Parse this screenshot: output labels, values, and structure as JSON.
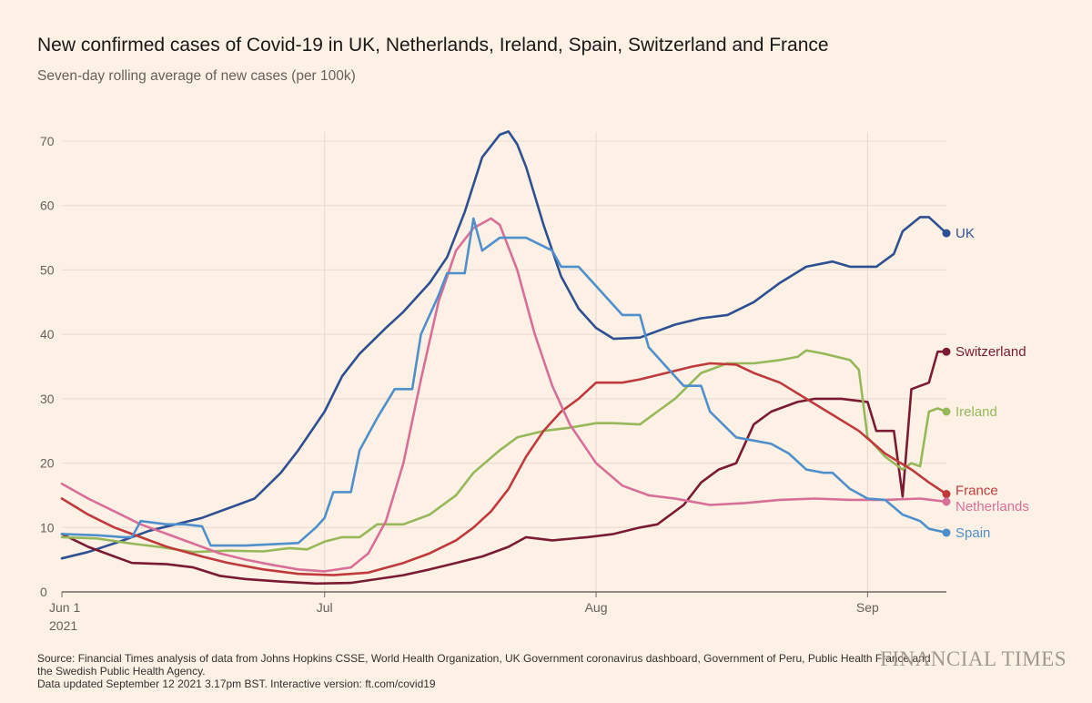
{
  "title": "New confirmed cases of Covid-19 in UK, Netherlands, Ireland, Spain, Switzerland and France",
  "subtitle": "Seven-day rolling average of new cases (per 100k)",
  "source_lines": [
    "Source: Financial Times analysis of data from Johns Hopkins CSSE, World Health Organization, UK Government coronavirus dashboard, Government of Peru, Public Health France and",
    "the Swedish Public Health Agency.",
    "Data updated September 12 2021 3.17pm BST. Interactive version: ft.com/covid19"
  ],
  "brand": "FINANCIAL TIMES",
  "chart_data": {
    "type": "line",
    "title": "New confirmed cases of Covid-19 in UK, Netherlands, Ireland, Spain, Switzerland and France",
    "subtitle": "Seven-day rolling average of new cases (per 100k)",
    "x_range": [
      "2021-06-01",
      "2021-09-10"
    ],
    "ylim": [
      0,
      70
    ],
    "yticks": [
      0,
      10,
      20,
      30,
      40,
      50,
      60,
      70
    ],
    "xticks": [
      {
        "date": "2021-06-01",
        "label": "Jun 1",
        "sublabel": "2021"
      },
      {
        "date": "2021-07-01",
        "label": "Jul"
      },
      {
        "date": "2021-08-01",
        "label": "Aug"
      },
      {
        "date": "2021-09-01",
        "label": "Sep"
      }
    ],
    "grid": true,
    "legend": "direct labels at line ends",
    "series": [
      {
        "name": "UK",
        "color": "#2e4f92",
        "points": [
          [
            "2021-06-01",
            5.2
          ],
          [
            "2021-06-04",
            6.2
          ],
          [
            "2021-06-08",
            8
          ],
          [
            "2021-06-11",
            9.5
          ],
          [
            "2021-06-14",
            10.5
          ],
          [
            "2021-06-17",
            11.5
          ],
          [
            "2021-06-20",
            13
          ],
          [
            "2021-06-23",
            14.5
          ],
          [
            "2021-06-26",
            18.5
          ],
          [
            "2021-06-28",
            22
          ],
          [
            "2021-07-01",
            28
          ],
          [
            "2021-07-03",
            33.5
          ],
          [
            "2021-07-05",
            37
          ],
          [
            "2021-07-08",
            41
          ],
          [
            "2021-07-10",
            43.5
          ],
          [
            "2021-07-13",
            48
          ],
          [
            "2021-07-15",
            52
          ],
          [
            "2021-07-17",
            59
          ],
          [
            "2021-07-19",
            67.5
          ],
          [
            "2021-07-21",
            71
          ],
          [
            "2021-07-22",
            71.5
          ],
          [
            "2021-07-23",
            69.5
          ],
          [
            "2021-07-24",
            66
          ],
          [
            "2021-07-26",
            57
          ],
          [
            "2021-07-28",
            49
          ],
          [
            "2021-07-30",
            44
          ],
          [
            "2021-08-01",
            41
          ],
          [
            "2021-08-03",
            39.3
          ],
          [
            "2021-08-06",
            39.5
          ],
          [
            "2021-08-10",
            41.5
          ],
          [
            "2021-08-13",
            42.5
          ],
          [
            "2021-08-16",
            43
          ],
          [
            "2021-08-19",
            45
          ],
          [
            "2021-08-22",
            48
          ],
          [
            "2021-08-25",
            50.5
          ],
          [
            "2021-08-28",
            51.3
          ],
          [
            "2021-08-30",
            50.5
          ],
          [
            "2021-09-02",
            50.5
          ],
          [
            "2021-09-04",
            52.5
          ],
          [
            "2021-09-05",
            56
          ],
          [
            "2021-09-07",
            58.2
          ],
          [
            "2021-09-08",
            58.2
          ],
          [
            "2021-09-10",
            55.7
          ]
        ]
      },
      {
        "name": "Switzerland",
        "color": "#7a1b33",
        "points": [
          [
            "2021-06-01",
            9
          ],
          [
            "2021-06-04",
            7
          ],
          [
            "2021-06-07",
            5.5
          ],
          [
            "2021-06-09",
            4.5
          ],
          [
            "2021-06-13",
            4.3
          ],
          [
            "2021-06-16",
            3.8
          ],
          [
            "2021-06-19",
            2.5
          ],
          [
            "2021-06-22",
            2
          ],
          [
            "2021-06-26",
            1.6
          ],
          [
            "2021-06-30",
            1.3
          ],
          [
            "2021-07-04",
            1.4
          ],
          [
            "2021-07-07",
            2
          ],
          [
            "2021-07-10",
            2.6
          ],
          [
            "2021-07-13",
            3.5
          ],
          [
            "2021-07-16",
            4.5
          ],
          [
            "2021-07-19",
            5.5
          ],
          [
            "2021-07-22",
            7
          ],
          [
            "2021-07-24",
            8.5
          ],
          [
            "2021-07-27",
            8
          ],
          [
            "2021-07-31",
            8.5
          ],
          [
            "2021-08-03",
            9
          ],
          [
            "2021-08-06",
            10
          ],
          [
            "2021-08-08",
            10.5
          ],
          [
            "2021-08-11",
            13.5
          ],
          [
            "2021-08-13",
            17
          ],
          [
            "2021-08-15",
            19
          ],
          [
            "2021-08-17",
            20
          ],
          [
            "2021-08-19",
            26
          ],
          [
            "2021-08-21",
            28
          ],
          [
            "2021-08-24",
            29.5
          ],
          [
            "2021-08-26",
            30
          ],
          [
            "2021-08-29",
            30
          ],
          [
            "2021-09-01",
            29.5
          ],
          [
            "2021-09-02",
            25
          ],
          [
            "2021-09-04",
            25
          ],
          [
            "2021-09-05",
            14.8
          ],
          [
            "2021-09-06",
            31.5
          ],
          [
            "2021-09-08",
            32.5
          ],
          [
            "2021-09-09",
            37.3
          ],
          [
            "2021-09-10",
            37.3
          ]
        ]
      },
      {
        "name": "Ireland",
        "color": "#96b85a",
        "points": [
          [
            "2021-06-01",
            8.5
          ],
          [
            "2021-06-05",
            8.3
          ],
          [
            "2021-06-09",
            7.5
          ],
          [
            "2021-06-12",
            7
          ],
          [
            "2021-06-16",
            6.2
          ],
          [
            "2021-06-20",
            6.4
          ],
          [
            "2021-06-24",
            6.3
          ],
          [
            "2021-06-27",
            6.8
          ],
          [
            "2021-06-29",
            6.6
          ],
          [
            "2021-07-01",
            7.8
          ],
          [
            "2021-07-03",
            8.5
          ],
          [
            "2021-07-05",
            8.5
          ],
          [
            "2021-07-07",
            10.5
          ],
          [
            "2021-07-10",
            10.5
          ],
          [
            "2021-07-13",
            12
          ],
          [
            "2021-07-16",
            15
          ],
          [
            "2021-07-18",
            18.5
          ],
          [
            "2021-07-21",
            22
          ],
          [
            "2021-07-23",
            24
          ],
          [
            "2021-07-26",
            25
          ],
          [
            "2021-07-29",
            25.5
          ],
          [
            "2021-08-01",
            26.2
          ],
          [
            "2021-08-03",
            26.2
          ],
          [
            "2021-08-06",
            26
          ],
          [
            "2021-08-08",
            28
          ],
          [
            "2021-08-10",
            30
          ],
          [
            "2021-08-13",
            34
          ],
          [
            "2021-08-16",
            35.5
          ],
          [
            "2021-08-19",
            35.5
          ],
          [
            "2021-08-22",
            36
          ],
          [
            "2021-08-24",
            36.5
          ],
          [
            "2021-08-25",
            37.5
          ],
          [
            "2021-08-27",
            37
          ],
          [
            "2021-08-30",
            36
          ],
          [
            "2021-08-31",
            34.5
          ],
          [
            "2021-09-01",
            24
          ],
          [
            "2021-09-03",
            21
          ],
          [
            "2021-09-05",
            19
          ],
          [
            "2021-09-06",
            20
          ],
          [
            "2021-09-07",
            19.5
          ],
          [
            "2021-09-08",
            28
          ],
          [
            "2021-09-09",
            28.5
          ],
          [
            "2021-09-10",
            28
          ]
        ]
      },
      {
        "name": "France",
        "color": "#c03a3c",
        "points": [
          [
            "2021-06-01",
            14.5
          ],
          [
            "2021-06-04",
            12
          ],
          [
            "2021-06-07",
            10
          ],
          [
            "2021-06-10",
            8.5
          ],
          [
            "2021-06-13",
            7
          ],
          [
            "2021-06-17",
            5.5
          ],
          [
            "2021-06-20",
            4.5
          ],
          [
            "2021-06-24",
            3.5
          ],
          [
            "2021-06-28",
            2.8
          ],
          [
            "2021-07-02",
            2.6
          ],
          [
            "2021-07-06",
            3
          ],
          [
            "2021-07-10",
            4.5
          ],
          [
            "2021-07-13",
            6
          ],
          [
            "2021-07-16",
            8
          ],
          [
            "2021-07-18",
            10
          ],
          [
            "2021-07-20",
            12.5
          ],
          [
            "2021-07-22",
            16
          ],
          [
            "2021-07-24",
            21
          ],
          [
            "2021-07-26",
            25
          ],
          [
            "2021-07-28",
            28
          ],
          [
            "2021-07-30",
            30
          ],
          [
            "2021-08-01",
            32.5
          ],
          [
            "2021-08-04",
            32.5
          ],
          [
            "2021-08-06",
            33
          ],
          [
            "2021-08-09",
            34
          ],
          [
            "2021-08-12",
            35
          ],
          [
            "2021-08-14",
            35.5
          ],
          [
            "2021-08-17",
            35.3
          ],
          [
            "2021-08-19",
            34
          ],
          [
            "2021-08-22",
            32.5
          ],
          [
            "2021-08-25",
            30
          ],
          [
            "2021-08-28",
            27.5
          ],
          [
            "2021-08-31",
            25
          ],
          [
            "2021-09-03",
            21.5
          ],
          [
            "2021-09-06",
            19
          ],
          [
            "2021-09-08",
            17
          ],
          [
            "2021-09-10",
            15.2
          ]
        ]
      },
      {
        "name": "Netherlands",
        "color": "#d86f99",
        "points": [
          [
            "2021-06-01",
            16.8
          ],
          [
            "2021-06-04",
            14.5
          ],
          [
            "2021-06-07",
            12.5
          ],
          [
            "2021-06-10",
            10.5
          ],
          [
            "2021-06-13",
            9
          ],
          [
            "2021-06-16",
            7.5
          ],
          [
            "2021-06-19",
            6
          ],
          [
            "2021-06-22",
            5
          ],
          [
            "2021-06-25",
            4.2
          ],
          [
            "2021-06-28",
            3.5
          ],
          [
            "2021-07-01",
            3.2
          ],
          [
            "2021-07-04",
            3.8
          ],
          [
            "2021-07-06",
            6
          ],
          [
            "2021-07-08",
            11
          ],
          [
            "2021-07-10",
            20
          ],
          [
            "2021-07-12",
            33
          ],
          [
            "2021-07-14",
            45
          ],
          [
            "2021-07-16",
            53
          ],
          [
            "2021-07-18",
            56.5
          ],
          [
            "2021-07-20",
            58
          ],
          [
            "2021-07-21",
            57
          ],
          [
            "2021-07-23",
            50
          ],
          [
            "2021-07-25",
            40
          ],
          [
            "2021-07-27",
            32
          ],
          [
            "2021-07-29",
            26
          ],
          [
            "2021-08-01",
            20
          ],
          [
            "2021-08-04",
            16.5
          ],
          [
            "2021-08-07",
            15
          ],
          [
            "2021-08-10",
            14.5
          ],
          [
            "2021-08-14",
            13.5
          ],
          [
            "2021-08-18",
            13.8
          ],
          [
            "2021-08-22",
            14.3
          ],
          [
            "2021-08-26",
            14.5
          ],
          [
            "2021-08-30",
            14.3
          ],
          [
            "2021-09-03",
            14.3
          ],
          [
            "2021-09-07",
            14.5
          ],
          [
            "2021-09-10",
            14
          ]
        ]
      },
      {
        "name": "Spain",
        "color": "#4e8fcc",
        "points": [
          [
            "2021-06-01",
            9
          ],
          [
            "2021-06-05",
            8.8
          ],
          [
            "2021-06-08",
            8.5
          ],
          [
            "2021-06-09",
            8.5
          ],
          [
            "2021-06-10",
            11
          ],
          [
            "2021-06-13",
            10.5
          ],
          [
            "2021-06-15",
            10.5
          ],
          [
            "2021-06-17",
            10.2
          ],
          [
            "2021-06-18",
            7.2
          ],
          [
            "2021-06-22",
            7.2
          ],
          [
            "2021-06-25",
            7.4
          ],
          [
            "2021-06-28",
            7.6
          ],
          [
            "2021-06-30",
            10
          ],
          [
            "2021-07-01",
            11.5
          ],
          [
            "2021-07-02",
            15.5
          ],
          [
            "2021-07-04",
            15.5
          ],
          [
            "2021-07-05",
            22
          ],
          [
            "2021-07-07",
            27
          ],
          [
            "2021-07-09",
            31.5
          ],
          [
            "2021-07-11",
            31.5
          ],
          [
            "2021-07-12",
            40
          ],
          [
            "2021-07-14",
            46
          ],
          [
            "2021-07-15",
            49.5
          ],
          [
            "2021-07-17",
            49.5
          ],
          [
            "2021-07-18",
            58
          ],
          [
            "2021-07-19",
            53
          ],
          [
            "2021-07-21",
            55
          ],
          [
            "2021-07-24",
            55
          ],
          [
            "2021-07-27",
            53
          ],
          [
            "2021-07-28",
            50.5
          ],
          [
            "2021-07-30",
            50.5
          ],
          [
            "2021-08-02",
            46
          ],
          [
            "2021-08-04",
            43
          ],
          [
            "2021-08-06",
            43
          ],
          [
            "2021-08-07",
            38
          ],
          [
            "2021-08-09",
            35
          ],
          [
            "2021-08-11",
            32
          ],
          [
            "2021-08-13",
            32
          ],
          [
            "2021-08-14",
            28
          ],
          [
            "2021-08-17",
            24
          ],
          [
            "2021-08-19",
            23.5
          ],
          [
            "2021-08-21",
            23
          ],
          [
            "2021-08-23",
            21.5
          ],
          [
            "2021-08-25",
            19
          ],
          [
            "2021-08-27",
            18.5
          ],
          [
            "2021-08-28",
            18.5
          ],
          [
            "2021-08-30",
            16
          ],
          [
            "2021-09-01",
            14.5
          ],
          [
            "2021-09-03",
            14.3
          ],
          [
            "2021-09-05",
            12
          ],
          [
            "2021-09-07",
            11
          ],
          [
            "2021-09-08",
            9.8
          ],
          [
            "2021-09-10",
            9.2
          ]
        ]
      }
    ]
  }
}
